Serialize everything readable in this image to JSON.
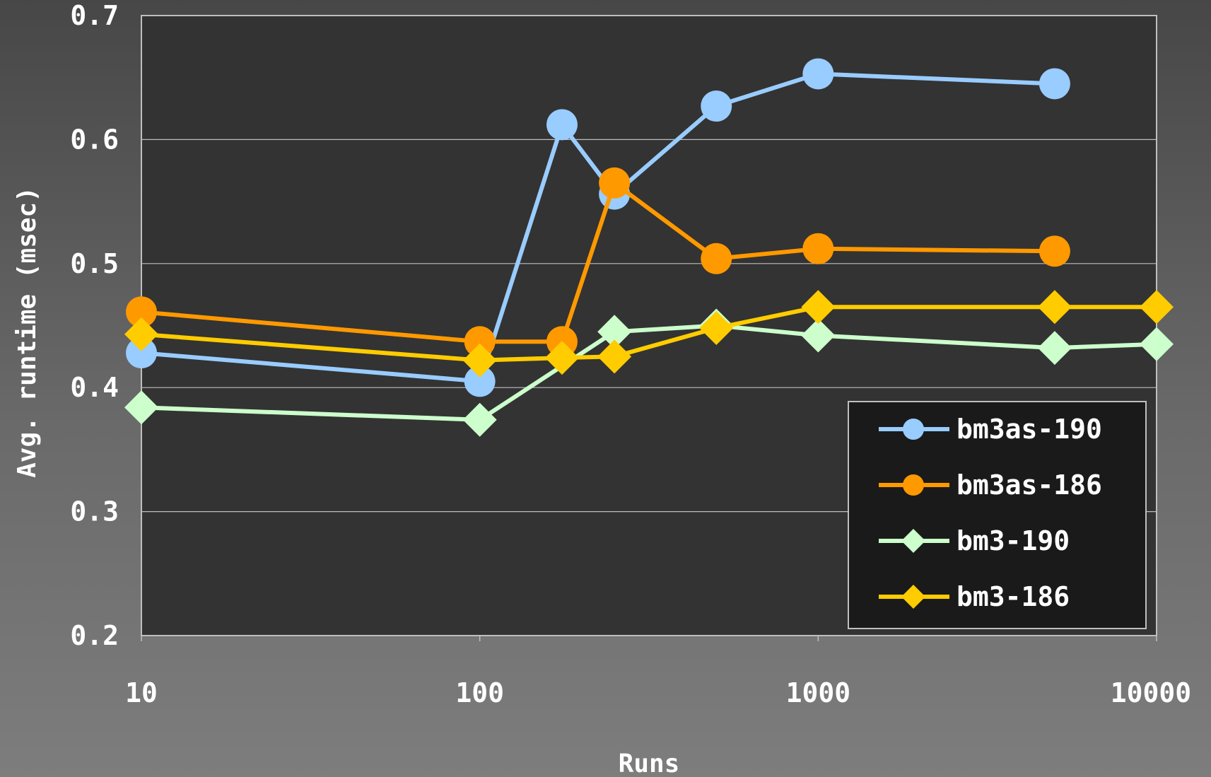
{
  "chart_data": {
    "type": "line",
    "xscale": "log",
    "xlabel": "Runs",
    "ylabel": "Avg. runtime (msec)",
    "xlim": [
      10,
      10000
    ],
    "ylim": [
      0.2,
      0.7
    ],
    "xticks": [
      "10",
      "100",
      "1000",
      "10000"
    ],
    "yticks": [
      "0.2",
      "0.3",
      "0.4",
      "0.5",
      "0.6",
      "0.7"
    ],
    "grid": true,
    "legend": "bottom-right",
    "series": [
      {
        "name": "bm3as-190",
        "color": "#99ccff",
        "marker": "circle",
        "x": [
          10,
          100,
          175,
          250,
          500,
          1000,
          5000
        ],
        "y": [
          0.428,
          0.405,
          0.612,
          0.556,
          0.627,
          0.653,
          0.645
        ]
      },
      {
        "name": "bm3as-186",
        "color": "#ff9900",
        "marker": "circle",
        "x": [
          10,
          100,
          175,
          250,
          500,
          1000,
          5000
        ],
        "y": [
          0.461,
          0.437,
          0.437,
          0.565,
          0.504,
          0.512,
          0.51
        ]
      },
      {
        "name": "bm3-190",
        "color": "#ccffcc",
        "marker": "diamond",
        "x": [
          10,
          100,
          250,
          500,
          1000,
          5000,
          10000
        ],
        "y": [
          0.384,
          0.374,
          0.445,
          0.45,
          0.442,
          0.432,
          0.435
        ]
      },
      {
        "name": "bm3-186",
        "color": "#ffcc00",
        "marker": "diamond",
        "x": [
          10,
          100,
          175,
          250,
          500,
          1000,
          5000,
          10000
        ],
        "y": [
          0.443,
          0.422,
          0.424,
          0.425,
          0.448,
          0.465,
          0.465,
          0.465
        ]
      }
    ]
  }
}
